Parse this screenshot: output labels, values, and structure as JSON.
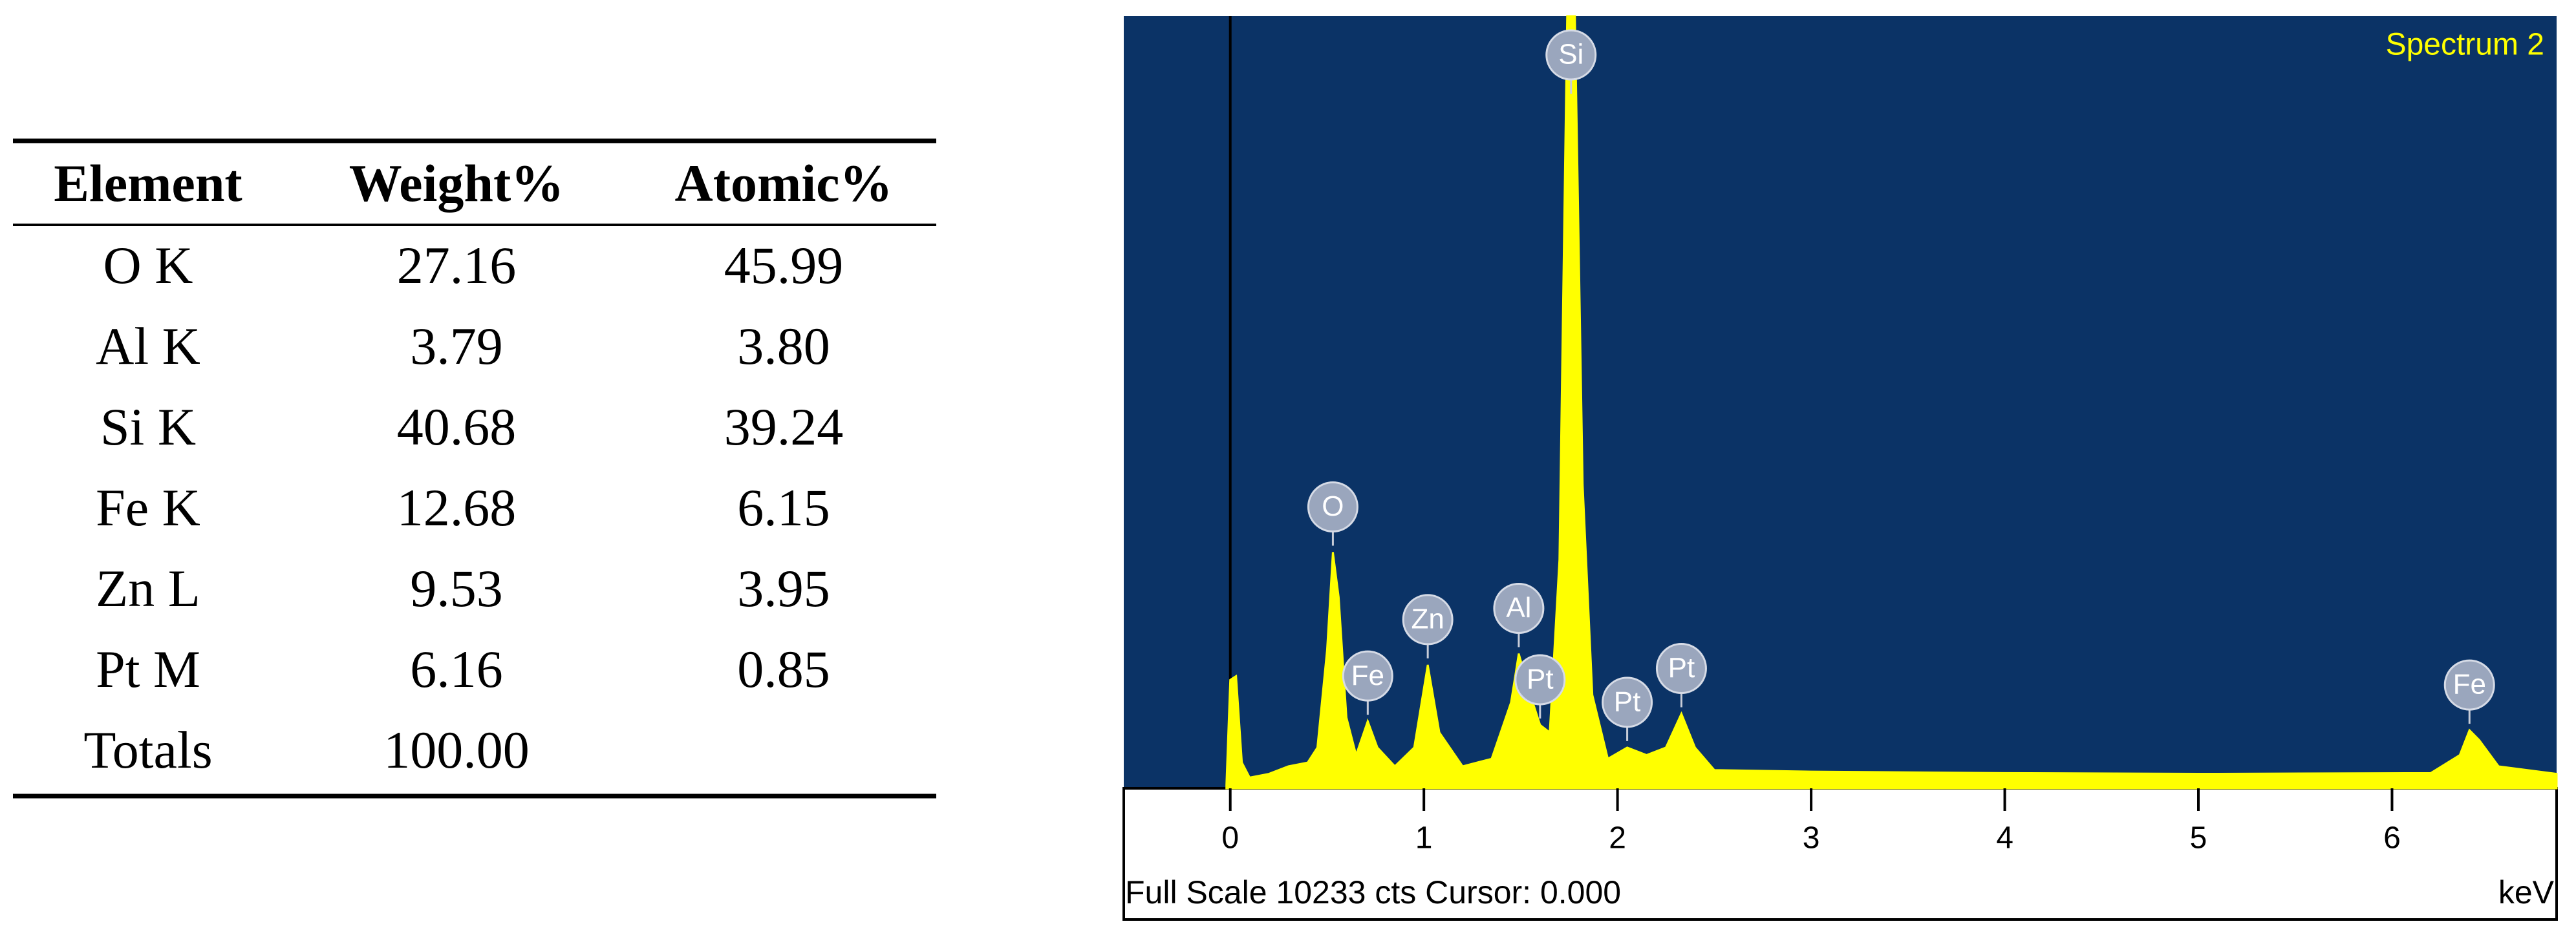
{
  "table": {
    "header": [
      "Element",
      "Weight%",
      "Atomic%"
    ],
    "rows": [
      [
        "O K",
        "27.16",
        "45.99"
      ],
      [
        "Al K",
        "3.79",
        "3.80"
      ],
      [
        "Si K",
        "40.68",
        "39.24"
      ],
      [
        "Fe K",
        "12.68",
        "6.15"
      ],
      [
        "Zn L",
        "9.53",
        "3.95"
      ],
      [
        "Pt M",
        "6.16",
        "0.85"
      ],
      [
        "Totals",
        "100.00"
      ]
    ]
  },
  "chart_data": {
    "type": "area",
    "title": "Spectrum 2",
    "x_label": "keV",
    "footer": "Full Scale 10233 cts Cursor: 0.000",
    "color": "#ffff00",
    "background": "#0b3366",
    "x": [
      -0.02,
      0.0,
      0.03,
      0.06,
      0.1,
      0.2,
      0.3,
      0.4,
      0.45,
      0.5,
      0.53,
      0.56,
      0.6,
      0.65,
      0.71,
      0.76,
      0.85,
      0.95,
      1.02,
      1.08,
      1.2,
      1.35,
      1.45,
      1.49,
      1.55,
      1.6,
      1.65,
      1.7,
      1.74,
      1.78,
      1.82,
      1.87,
      1.95,
      2.05,
      2.15,
      2.25,
      2.33,
      2.4,
      2.5,
      3,
      4,
      5,
      6.2,
      6.35,
      6.4,
      6.45,
      6.55,
      6.85
    ],
    "values": [
      0,
      1400,
      1450,
      300,
      100,
      150,
      250,
      300,
      500,
      1800,
      3100,
      2500,
      900,
      400,
      850,
      500,
      250,
      500,
      1600,
      700,
      250,
      350,
      1100,
      1750,
      1200,
      800,
      700,
      3000,
      10233,
      10233,
      4000,
      1200,
      350,
      500,
      400,
      500,
      950,
      500,
      200,
      180,
      160,
      150,
      160,
      400,
      730,
      600,
      250,
      150
    ],
    "xlim": [
      -0.55,
      6.85
    ],
    "ylim": [
      0,
      10233
    ],
    "xticks": [
      0,
      1,
      2,
      3,
      4,
      5,
      6
    ],
    "peak_labels": [
      {
        "text": "O",
        "x": 0.53
      },
      {
        "text": "Fe",
        "x": 0.71
      },
      {
        "text": "Zn",
        "x": 1.02
      },
      {
        "text": "Al",
        "x": 1.49
      },
      {
        "text": "Pt",
        "x": 1.6
      },
      {
        "text": "Si",
        "x": 1.76
      },
      {
        "text": "Pt",
        "x": 2.05
      },
      {
        "text": "Pt",
        "x": 2.33
      },
      {
        "text": "Fe",
        "x": 6.4
      }
    ]
  }
}
